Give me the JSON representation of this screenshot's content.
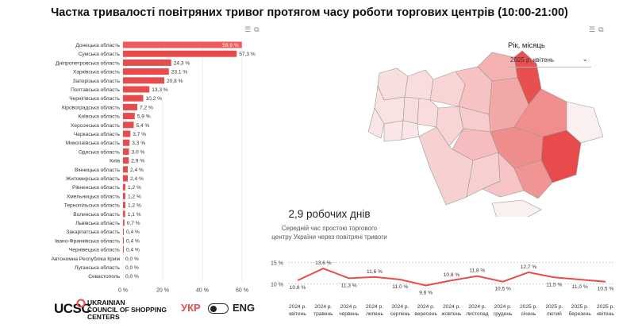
{
  "title": "Частка тривалості повітряних тривог протягом часу роботи торгових центрів (10:00-21:00)",
  "filter": {
    "label": "Рік, місяць",
    "value": "2025 р. квітень"
  },
  "kpi": {
    "value": "2,9 робочих днів",
    "description_line1": "Середній час простою торгового",
    "description_line2": "центру України через повітряні тривоги"
  },
  "colors": {
    "bar": "#e84b4b",
    "bar_top": "#f05a5a",
    "line": "#e84b4b"
  },
  "chart_data": [
    {
      "type": "bar",
      "orientation": "horizontal",
      "categories": [
        "Донецька область",
        "Сумська область",
        "Дніпропетровська область",
        "Харківська область",
        "Запорізька область",
        "Полтавська область",
        "Чернігівська область",
        "Кіровоградська область",
        "Київська область",
        "Херсонська область",
        "Черкаська область",
        "Миколаївська область",
        "Одеська область",
        "Київ",
        "Вінницька область",
        "Житомирська область",
        "Рівненська область",
        "Хмельницька область",
        "Тернопільська область",
        "Волинська область",
        "Львівська область",
        "Закарпатська область",
        "Івано-Франківська область",
        "Чернівецька область",
        "Автономна Республіка Крим",
        "Луганська область",
        "Севастополь"
      ],
      "values": [
        59.9,
        57.3,
        24.3,
        23.1,
        20.8,
        13.3,
        10.2,
        7.2,
        5.9,
        5.4,
        3.7,
        3.3,
        3.0,
        2.9,
        2.4,
        2.4,
        1.2,
        1.2,
        1.2,
        1.1,
        0.7,
        0.4,
        0.4,
        0.4,
        0.0,
        0.0,
        0.0
      ],
      "value_labels": [
        "59,9 %",
        "57,3 %",
        "24,3 %",
        "23,1 %",
        "20,8 %",
        "13,3 %",
        "10,2 %",
        "7,2 %",
        "5,9 %",
        "5,4 %",
        "3,7 %",
        "3,3 %",
        "3,0 %",
        "2,9 %",
        "2,4 %",
        "2,4 %",
        "1,2 %",
        "1,2 %",
        "1,2 %",
        "1,1 %",
        "0,7 %",
        "0,4 %",
        "0,4 %",
        "0,4 %",
        "0,0 %",
        "0,0 %",
        "0,0 %"
      ],
      "x_ticks": [
        0,
        20,
        40,
        60
      ],
      "x_tick_labels": [
        "0 %",
        "20 %",
        "40 %",
        "60 %"
      ],
      "xlim": [
        0,
        60
      ]
    },
    {
      "type": "line",
      "categories": [
        [
          "2024 р.",
          "квітень"
        ],
        [
          "2024 р.",
          "травень"
        ],
        [
          "2024 р.",
          "червень"
        ],
        [
          "2024 р.",
          "липень"
        ],
        [
          "2024 р.",
          "серпень"
        ],
        [
          "2024 р.",
          "вересень"
        ],
        [
          "2024 р.",
          "жовтень"
        ],
        [
          "2024 р.",
          "листопад"
        ],
        [
          "2024 р.",
          "грудень"
        ],
        [
          "2025 р.",
          "січень"
        ],
        [
          "2025 р.",
          "лютий"
        ],
        [
          "2025 р.",
          "березень"
        ],
        [
          "2025 р.",
          "квітень"
        ]
      ],
      "values": [
        10.8,
        13.6,
        11.3,
        11.6,
        11.0,
        9.6,
        10.8,
        11.8,
        10.5,
        12.7,
        11.5,
        11.0,
        10.5
      ],
      "value_labels": [
        "10,8 %",
        "13,6 %",
        "11,3 %",
        "11,6 %",
        "11,0 %",
        "9,6 %",
        "10,8 %",
        "11,8 %",
        "10,5 %",
        "12,7 %",
        "11,5 %",
        "11,0 %",
        "10,5 %"
      ],
      "y_ticks": [
        10,
        15
      ],
      "y_tick_labels": [
        "10 %",
        "15 %"
      ],
      "ylim": [
        8,
        15.5
      ]
    }
  ],
  "map": {
    "regions": [
      {
        "name": "Волинська",
        "level": 1.1
      },
      {
        "name": "Рівненська",
        "level": 1.2
      },
      {
        "name": "Житомирська",
        "level": 2.4
      },
      {
        "name": "Київська",
        "level": 5.9
      },
      {
        "name": "Чернігівська",
        "level": 10.2
      },
      {
        "name": "Сумська",
        "level": 57.3
      },
      {
        "name": "Львівська",
        "level": 0.7
      },
      {
        "name": "Тернопільська",
        "level": 1.2
      },
      {
        "name": "Хмельницька",
        "level": 1.2
      },
      {
        "name": "Вінницька",
        "level": 2.4
      },
      {
        "name": "Черкаська",
        "level": 3.7
      },
      {
        "name": "Полтавська",
        "level": 13.3
      },
      {
        "name": "Харківська",
        "level": 23.1
      },
      {
        "name": "Закарпатська",
        "level": 0.4
      },
      {
        "name": "Івано-Франківська",
        "level": 0.4
      },
      {
        "name": "Чернівецька",
        "level": 0.4
      },
      {
        "name": "Кіровоградська",
        "level": 7.2
      },
      {
        "name": "Дніпропетровська",
        "level": 24.3
      },
      {
        "name": "Донецька",
        "level": 59.9
      },
      {
        "name": "Луганська",
        "level": 0.0
      },
      {
        "name": "Одеська",
        "level": 3.0
      },
      {
        "name": "Миколаївська",
        "level": 3.3
      },
      {
        "name": "Херсонська",
        "level": 5.4
      },
      {
        "name": "Запорізька",
        "level": 20.8
      },
      {
        "name": "Автономна Республіка Крим",
        "level": 0.0
      }
    ]
  },
  "footer": {
    "logo_abbr": "UCSC",
    "logo_line1": "UKRAINIAN",
    "logo_line2": "COUNCIL OF SHOPPING",
    "logo_line3": "CENTERS",
    "lang_active": "УКР",
    "lang_other": "ENG"
  }
}
